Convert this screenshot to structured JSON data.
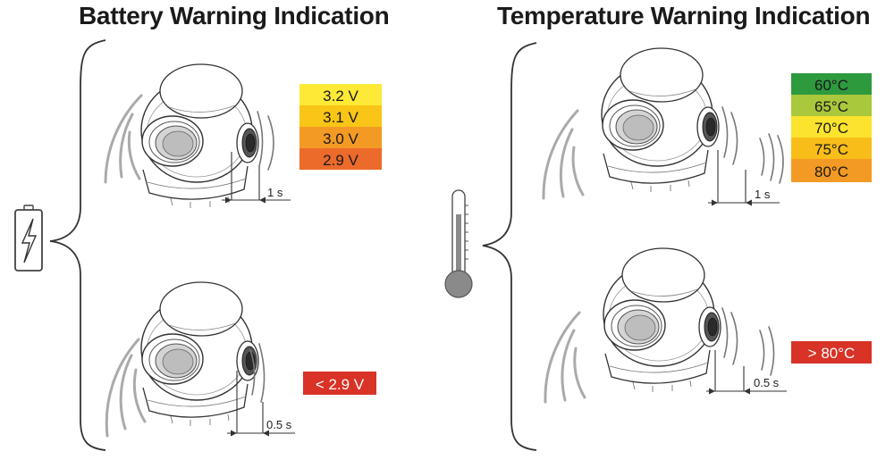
{
  "battery": {
    "title": "Battery Warning Indication",
    "icon": "battery-charging-icon",
    "levels": [
      {
        "label": "3.2 V",
        "color": "#fde936"
      },
      {
        "label": "3.1 V",
        "color": "#f9c516"
      },
      {
        "label": "3.0 V",
        "color": "#f39a24"
      },
      {
        "label": "2.9 V",
        "color": "#ec6a2a"
      }
    ],
    "critical": {
      "label": "< 2.9 V",
      "color": "#d93226"
    },
    "interval_normal": "1 s",
    "interval_critical": "0.5 s"
  },
  "temperature": {
    "title": "Temperature Warning Indication",
    "icon": "thermometer-icon",
    "levels": [
      {
        "label": "60°C",
        "color": "#2e9a3e"
      },
      {
        "label": "65°C",
        "color": "#a9c83c"
      },
      {
        "label": "70°C",
        "color": "#fbe32e"
      },
      {
        "label": "75°C",
        "color": "#f8bd18"
      },
      {
        "label": "80°C",
        "color": "#f39a24"
      }
    ],
    "critical": {
      "label": "> 80°C",
      "color": "#d93226"
    },
    "interval_normal": "1 s",
    "interval_critical": "0.5 s"
  }
}
